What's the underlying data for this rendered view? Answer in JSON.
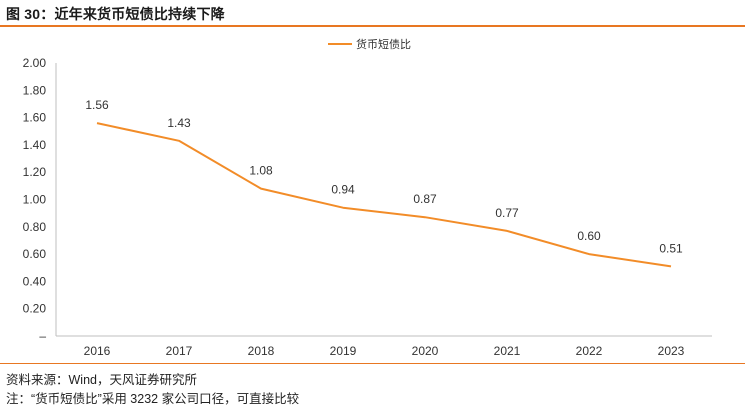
{
  "title": "图 30：近年来货币短债比持续下降",
  "notes": {
    "source": "资料来源：Wind，天风证券研究所",
    "note": "注：“货币短债比”采用 3232 家公司口径，可直接比较"
  },
  "colors": {
    "accent": "#e87722",
    "line": "#f28c28",
    "axis": "#bfbfbf"
  },
  "chart_data": {
    "type": "line",
    "categories": [
      "2016",
      "2017",
      "2018",
      "2019",
      "2020",
      "2021",
      "2022",
      "2023"
    ],
    "series": [
      {
        "name": "货币短债比",
        "values": [
          1.56,
          1.43,
          1.08,
          0.94,
          0.87,
          0.77,
          0.6,
          0.51
        ],
        "labels": [
          "1.56",
          "1.43",
          "1.08",
          "0.94",
          "0.87",
          "0.77",
          "0.60",
          "0.51"
        ]
      }
    ],
    "yticks": [
      "2.00",
      "1.80",
      "1.60",
      "1.40",
      "1.20",
      "1.00",
      "0.80",
      "0.60",
      "0.40",
      "0.20",
      "–"
    ],
    "ylim": [
      0,
      2.0
    ],
    "legend_position": "top-center",
    "grid": false
  }
}
